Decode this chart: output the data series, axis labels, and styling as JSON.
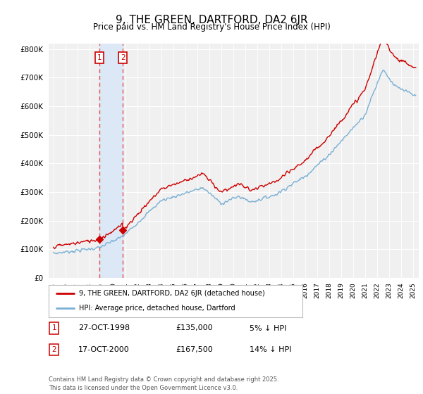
{
  "title": "9, THE GREEN, DARTFORD, DA2 6JR",
  "subtitle": "Price paid vs. HM Land Registry's House Price Index (HPI)",
  "legend_label_red": "9, THE GREEN, DARTFORD, DA2 6JR (detached house)",
  "legend_label_blue": "HPI: Average price, detached house, Dartford",
  "footer": "Contains HM Land Registry data © Crown copyright and database right 2025.\nThis data is licensed under the Open Government Licence v3.0.",
  "transactions": [
    {
      "num": 1,
      "date": "27-OCT-1998",
      "price": 135000,
      "hpi_diff": "5% ↓ HPI",
      "year": 1998.82
    },
    {
      "num": 2,
      "date": "17-OCT-2000",
      "price": 167500,
      "hpi_diff": "14% ↓ HPI",
      "year": 2000.8
    }
  ],
  "red_color": "#cc0000",
  "blue_color": "#7ab0d4",
  "vline_color": "#dd4444",
  "span_color": "#dce8f5",
  "ylim": [
    0,
    820000
  ],
  "yticks": [
    0,
    100000,
    200000,
    300000,
    400000,
    500000,
    600000,
    700000,
    800000
  ],
  "background_color": "#ffffff",
  "plot_bg_color": "#f0f0f0"
}
